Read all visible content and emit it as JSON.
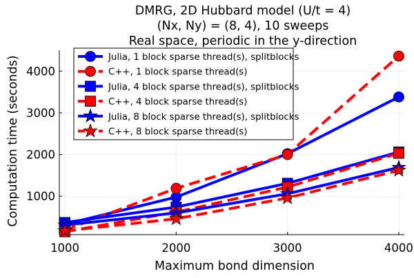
{
  "chart_data": {
    "type": "line",
    "title_lines": [
      "DMRG, 2D Hubbard model (U/t = 4)",
      "(Nx, Ny) = (8, 4), 10 sweeps",
      "Real space, periodic in the y-direction"
    ],
    "xlabel": "Maximum bond dimension",
    "ylabel": "Computation time (seconds)",
    "xlim": [
      950,
      4050
    ],
    "ylim": [
      80,
      4500
    ],
    "x_ticks": [
      1000,
      2000,
      3000,
      4000
    ],
    "y_ticks": [
      1000,
      2000,
      3000,
      4000
    ],
    "x": [
      1000,
      2000,
      3000,
      4000
    ],
    "grid": true,
    "legend_position": "top-left",
    "series": [
      {
        "name": "Julia, 1 block sparse thread(s), splitblocks",
        "values": [
          330,
          980,
          2020,
          3380
        ],
        "color": "#0000ff",
        "line": "solid",
        "marker": "circle"
      },
      {
        "name": "C++, 1 block sparse thread(s)",
        "values": [
          190,
          1190,
          2000,
          4360
        ],
        "color": "#ff0000",
        "line": "dashed",
        "marker": "circle"
      },
      {
        "name": "Julia, 4 block sparse thread(s), splitblocks",
        "values": [
          370,
          740,
          1310,
          2060
        ],
        "color": "#0000ff",
        "line": "solid",
        "marker": "square"
      },
      {
        "name": "C++, 4 block sparse thread(s)",
        "values": [
          150,
          620,
          1220,
          2030
        ],
        "color": "#ff0000",
        "line": "dashed",
        "marker": "square"
      },
      {
        "name": "Julia, 8 block sparse thread(s), splitblocks",
        "values": [
          310,
          600,
          1060,
          1690
        ],
        "color": "#0000ff",
        "line": "solid",
        "marker": "star"
      },
      {
        "name": "C++, 8 block sparse thread(s)",
        "values": [
          170,
          460,
          960,
          1620
        ],
        "color": "#ff0000",
        "line": "dashed",
        "marker": "star"
      }
    ]
  }
}
